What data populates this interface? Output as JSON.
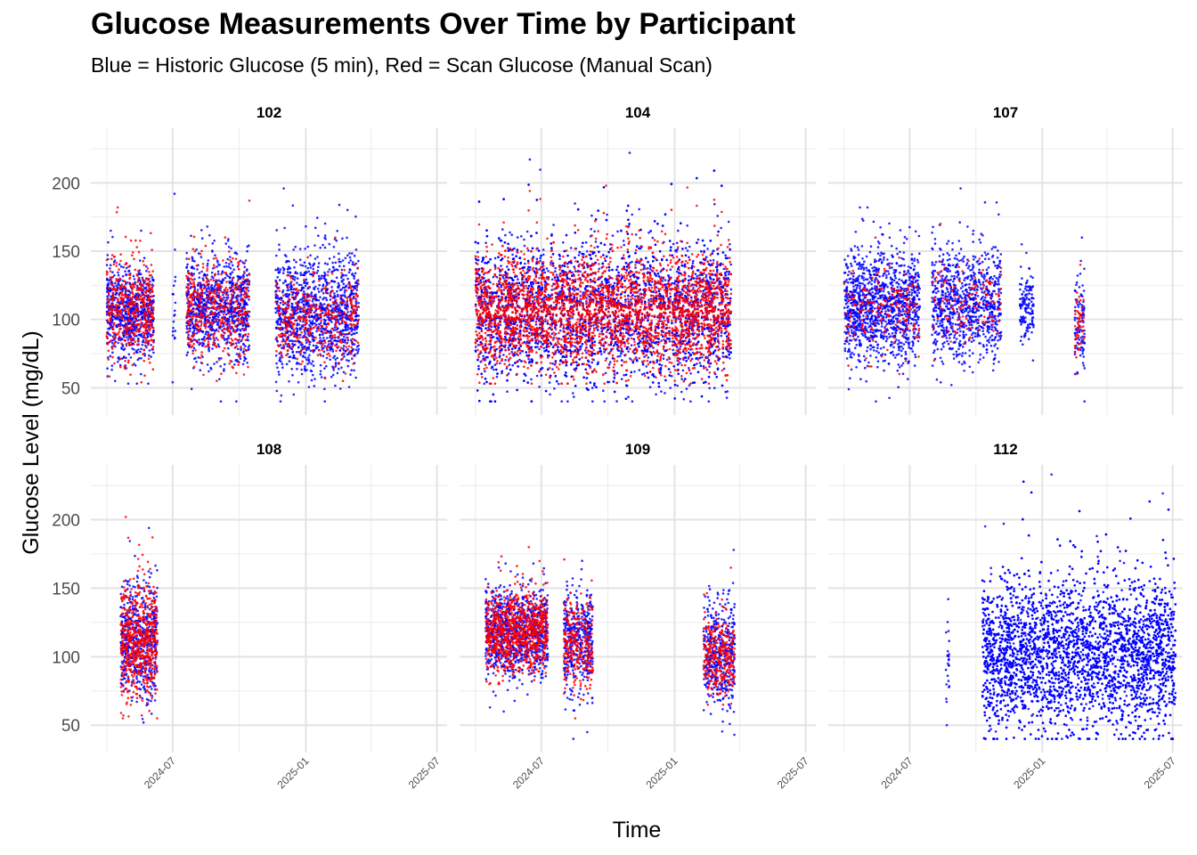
{
  "chart_data": {
    "type": "scatter",
    "title": "Glucose Measurements Over Time by Participant",
    "subtitle": "Blue = Historic Glucose (5 min), Red = Scan Glucose (Manual Scan)",
    "xlabel": "Time",
    "ylabel": "Glucose Level (mg/dL)",
    "x_ticks": [
      "2024-07",
      "2025-01",
      "2025-07"
    ],
    "y_ticks": [
      50,
      100,
      150,
      200
    ],
    "ylim": [
      30,
      240
    ],
    "xlim": [
      "2024-03-10",
      "2025-07-15"
    ],
    "grid": true,
    "series": [
      {
        "name": "Historic Glucose (5 min)",
        "color": "#0000ff"
      },
      {
        "name": "Scan Glucose (Manual Scan)",
        "color": "#ff0000"
      }
    ],
    "facets": [
      {
        "label": "102",
        "historic": [
          {
            "start": "2024-04-01",
            "end": "2024-06-05",
            "min": 53,
            "max": 165,
            "center": 105,
            "density": 1.0
          },
          {
            "start": "2024-07-01",
            "end": "2024-07-05",
            "min": 54,
            "max": 192,
            "center": 105,
            "density": 0.3
          },
          {
            "start": "2024-07-20",
            "end": "2024-10-15",
            "min": 40,
            "max": 168,
            "center": 108,
            "density": 0.9
          },
          {
            "start": "2024-11-20",
            "end": "2025-03-15",
            "min": 40,
            "max": 196,
            "center": 104,
            "density": 0.9
          }
        ],
        "scan": [
          {
            "start": "2024-04-01",
            "end": "2024-06-05",
            "min": 54,
            "max": 182,
            "center": 108,
            "density": 0.6
          },
          {
            "start": "2024-07-20",
            "end": "2024-10-15",
            "min": 55,
            "max": 187,
            "center": 108,
            "density": 0.45
          },
          {
            "start": "2024-11-20",
            "end": "2025-03-15",
            "min": 55,
            "max": 160,
            "center": 100,
            "density": 0.3
          }
        ]
      },
      {
        "label": "104",
        "historic": [
          {
            "start": "2024-04-01",
            "end": "2025-03-20",
            "min": 40,
            "max": 222,
            "center": 106,
            "density": 1.0
          }
        ],
        "scan": [
          {
            "start": "2024-04-01",
            "end": "2025-03-20",
            "min": 53,
            "max": 198,
            "center": 106,
            "density": 0.8
          }
        ]
      },
      {
        "label": "107",
        "historic": [
          {
            "start": "2024-04-01",
            "end": "2024-07-15",
            "min": 40,
            "max": 182,
            "center": 110,
            "density": 1.0
          },
          {
            "start": "2024-08-01",
            "end": "2024-11-05",
            "min": 52,
            "max": 196,
            "center": 112,
            "density": 0.8
          },
          {
            "start": "2024-12-01",
            "end": "2024-12-20",
            "min": 70,
            "max": 155,
            "center": 110,
            "density": 0.6
          },
          {
            "start": "2025-02-15",
            "end": "2025-03-01",
            "min": 40,
            "max": 160,
            "center": 95,
            "density": 0.6
          }
        ],
        "scan": [
          {
            "start": "2024-04-01",
            "end": "2024-07-15",
            "min": 60,
            "max": 160,
            "center": 105,
            "density": 0.15
          },
          {
            "start": "2024-08-01",
            "end": "2024-11-05",
            "min": 70,
            "max": 170,
            "center": 110,
            "density": 0.12
          },
          {
            "start": "2025-02-15",
            "end": "2025-03-01",
            "min": 60,
            "max": 140,
            "center": 95,
            "density": 0.3
          }
        ]
      },
      {
        "label": "108",
        "historic": [
          {
            "start": "2024-04-20",
            "end": "2024-06-10",
            "min": 52,
            "max": 194,
            "center": 112,
            "density": 1.0
          }
        ],
        "scan": [
          {
            "start": "2024-04-20",
            "end": "2024-06-10",
            "min": 55,
            "max": 202,
            "center": 112,
            "density": 1.0
          }
        ]
      },
      {
        "label": "109",
        "historic": [
          {
            "start": "2024-04-15",
            "end": "2024-07-10",
            "min": 60,
            "max": 168,
            "center": 118,
            "density": 1.0
          },
          {
            "start": "2024-08-01",
            "end": "2024-09-10",
            "min": 40,
            "max": 170,
            "center": 112,
            "density": 0.9
          },
          {
            "start": "2025-02-10",
            "end": "2025-03-25",
            "min": 43,
            "max": 178,
            "center": 102,
            "density": 0.9
          }
        ],
        "scan": [
          {
            "start": "2024-04-15",
            "end": "2024-07-10",
            "min": 80,
            "max": 180,
            "center": 118,
            "density": 0.9
          },
          {
            "start": "2024-08-01",
            "end": "2024-09-10",
            "min": 55,
            "max": 171,
            "center": 110,
            "density": 0.6
          },
          {
            "start": "2025-02-10",
            "end": "2025-03-25",
            "min": 65,
            "max": 165,
            "center": 100,
            "density": 0.6
          }
        ]
      },
      {
        "label": "112",
        "historic": [
          {
            "start": "2024-08-20",
            "end": "2024-08-25",
            "min": 50,
            "max": 142,
            "center": 95,
            "density": 0.4
          },
          {
            "start": "2024-10-10",
            "end": "2025-07-05",
            "min": 40,
            "max": 233,
            "center": 102,
            "density": 1.6
          }
        ],
        "scan": []
      }
    ]
  }
}
